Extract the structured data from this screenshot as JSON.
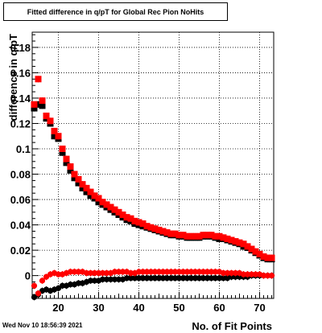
{
  "title": "Fitted difference in q/pT for Global Rec Pion NoHits",
  "timestamp": "Wed Nov 10 18:56:39 2021",
  "colors": {
    "series_red": "#ff0000",
    "series_black": "#000000",
    "grid": "#000000"
  },
  "chart_data": {
    "type": "scatter",
    "title": "Fitted difference in q/pT for Global Rec Pion NoHits",
    "xlabel": "No. of Fit Points",
    "ylabel": "difference in q/pT",
    "xlim": [
      13.5,
      73.5
    ],
    "ylim": [
      -0.018,
      0.192
    ],
    "xticks": [
      20,
      30,
      40,
      50,
      60,
      70
    ],
    "yticks": [
      0,
      0.02,
      0.04,
      0.06,
      0.08,
      0.1,
      0.12,
      0.14,
      0.16,
      0.18
    ],
    "yticklabels": [
      "0",
      "0.02",
      "0.04",
      "0.06",
      "0.08",
      "0.1",
      "0.12",
      "0.14",
      "0.16",
      "0.18"
    ],
    "grid": true,
    "legend": "none",
    "x": [
      14,
      15,
      16,
      17,
      18,
      19,
      20,
      21,
      22,
      23,
      24,
      25,
      26,
      27,
      28,
      29,
      30,
      31,
      32,
      33,
      34,
      35,
      36,
      37,
      38,
      39,
      40,
      41,
      42,
      43,
      44,
      45,
      46,
      47,
      48,
      49,
      50,
      51,
      52,
      53,
      54,
      55,
      56,
      57,
      58,
      59,
      60,
      61,
      62,
      63,
      64,
      65,
      66,
      67,
      68,
      69,
      70,
      71,
      72,
      73
    ],
    "series": [
      {
        "color": "#ff0000",
        "marker": "square",
        "y": [
          0.135,
          0.155,
          0.138,
          0.126,
          0.122,
          0.114,
          0.11,
          0.1,
          0.092,
          0.086,
          0.08,
          0.076,
          0.072,
          0.069,
          0.066,
          0.063,
          0.061,
          0.058,
          0.056,
          0.054,
          0.052,
          0.05,
          0.048,
          0.046,
          0.045,
          0.043,
          0.042,
          0.041,
          0.039,
          0.038,
          0.037,
          0.036,
          0.035,
          0.034,
          0.033,
          0.033,
          0.032,
          0.032,
          0.031,
          0.031,
          0.031,
          0.031,
          0.032,
          0.032,
          0.032,
          0.031,
          0.031,
          0.03,
          0.029,
          0.028,
          0.027,
          0.026,
          0.025,
          0.023,
          0.021,
          0.019,
          0.017,
          0.015,
          0.014,
          0.014
        ]
      },
      {
        "color": "#000000",
        "marker": "square",
        "y": [
          0.132,
          0.135,
          0.134,
          0.124,
          0.12,
          0.11,
          0.108,
          0.097,
          0.089,
          0.083,
          0.077,
          0.073,
          0.069,
          0.066,
          0.063,
          0.061,
          0.058,
          0.056,
          0.054,
          0.052,
          0.05,
          0.048,
          0.046,
          0.044,
          0.043,
          0.041,
          0.04,
          0.039,
          0.038,
          0.037,
          0.036,
          0.035,
          0.034,
          0.033,
          0.032,
          0.032,
          0.031,
          0.031,
          0.03,
          0.03,
          0.03,
          0.03,
          0.031,
          0.031,
          0.031,
          0.03,
          0.029,
          0.029,
          0.028,
          0.027,
          0.026,
          0.025,
          0.023,
          0.022,
          0.02,
          0.018,
          0.016,
          0.014,
          0.013,
          0.013
        ]
      },
      {
        "color": "#ff0000",
        "marker": "circle",
        "y": [
          -0.008,
          -0.014,
          -0.004,
          -0.001,
          0.001,
          0.002,
          0.001,
          0.001,
          0.002,
          0.003,
          0.003,
          0.003,
          0.003,
          0.002,
          0.002,
          0.002,
          0.002,
          0.002,
          0.002,
          0.002,
          0.003,
          0.003,
          0.003,
          0.003,
          0.002,
          0.002,
          0.003,
          0.003,
          0.003,
          0.003,
          0.003,
          0.003,
          0.003,
          0.003,
          0.003,
          0.003,
          0.003,
          0.003,
          0.003,
          0.003,
          0.003,
          0.003,
          0.003,
          0.003,
          0.003,
          0.003,
          0.003,
          0.002,
          0.002,
          0.002,
          0.002,
          0.002,
          0.001,
          0.001,
          0.001,
          0.001,
          0.001,
          0.0,
          0.0,
          0.0
        ]
      },
      {
        "color": "#000000",
        "marker": "circle",
        "y": [
          -0.017,
          -0.015,
          -0.012,
          -0.011,
          -0.012,
          -0.011,
          -0.01,
          -0.008,
          -0.008,
          -0.007,
          -0.007,
          -0.006,
          -0.006,
          -0.005,
          -0.004,
          -0.004,
          -0.004,
          -0.003,
          -0.003,
          -0.003,
          -0.003,
          -0.003,
          -0.003,
          -0.002,
          -0.002,
          -0.002,
          -0.002,
          -0.002,
          -0.002,
          -0.002,
          -0.002,
          -0.002,
          -0.002,
          -0.002,
          -0.002,
          -0.002,
          -0.002,
          -0.002,
          -0.002,
          -0.002,
          -0.002,
          -0.002,
          -0.002,
          -0.002,
          -0.002,
          -0.002,
          -0.002,
          -0.002,
          -0.002,
          -0.001,
          -0.001,
          -0.001,
          -0.001,
          -0.001,
          0.0,
          0.0,
          0.0,
          0.0,
          0.0,
          0.0
        ]
      }
    ]
  }
}
